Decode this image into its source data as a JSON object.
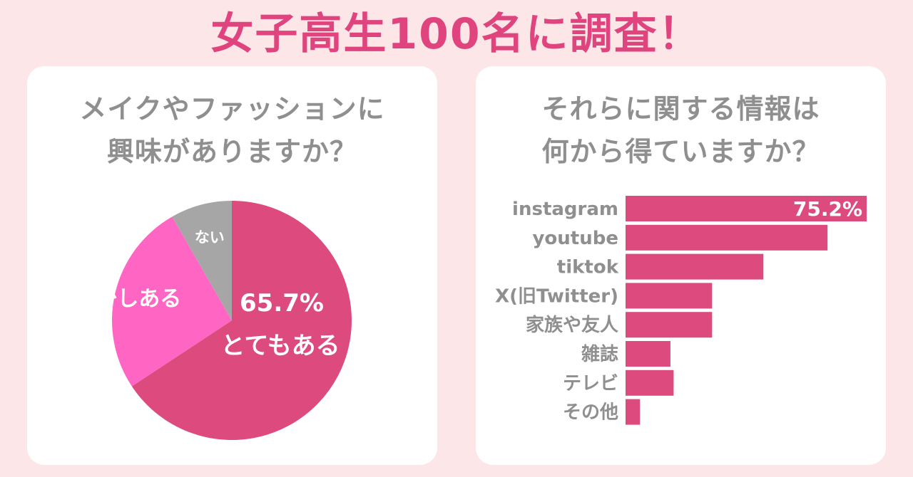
{
  "headline": "女子高生100名に調査！",
  "colors": {
    "background": "#fde6e8",
    "headline": "#e0447e",
    "question": "#8f8f8f",
    "pie_main": "#dd4a7e",
    "pie_second": "#ff66c4",
    "pie_third": "#a6a6a6",
    "bar": "#dd4a7e"
  },
  "left": {
    "question_line1": "メイクやファッションに",
    "question_line2": "興味がありますか？"
  },
  "right": {
    "question_line1": "それらに関する情報は",
    "question_line2": "何から得ていますか？"
  },
  "chart_data": [
    {
      "type": "pie",
      "slices": [
        {
          "label": "とてもある",
          "value": 65.7,
          "value_label": "65.7%",
          "color": "#dd4a7e"
        },
        {
          "label": "少しある",
          "value": 26.0,
          "color": "#ff66c4"
        },
        {
          "label": "ない",
          "value": 8.3,
          "color": "#a6a6a6"
        }
      ]
    },
    {
      "type": "bar",
      "orientation": "horizontal",
      "categories": [
        "instagram",
        "youtube",
        "tiktok",
        "X(旧Twitter)",
        "家族や友人",
        "雑誌",
        "テレビ",
        "その他"
      ],
      "values": [
        75.2,
        63.0,
        43.0,
        27.0,
        27.0,
        14.0,
        15.0,
        4.5
      ],
      "value_labels": [
        "75.2%",
        "",
        "",
        "",
        "",
        "",
        "",
        ""
      ],
      "xlim": [
        0,
        75.2
      ]
    }
  ]
}
